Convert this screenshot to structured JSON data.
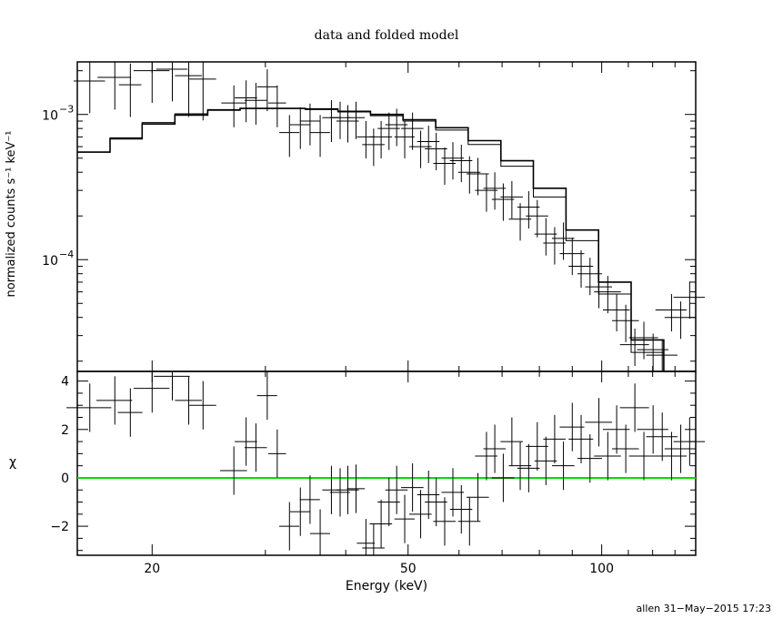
{
  "chart_data": [
    {
      "type": "step-line-errorbars",
      "title": "data and folded model",
      "ylabel": "normalized counts s⁻¹ keV⁻¹",
      "xscale": "log",
      "yscale": "log",
      "xlim": [
        15.3,
        140
      ],
      "ylim": [
        1.7e-05,
        0.0023
      ],
      "y_ticks": [
        {
          "value": 0.001,
          "mantissa": "10",
          "exponent": "−3"
        },
        {
          "value": 0.0001,
          "mantissa": "10",
          "exponent": "−4"
        }
      ],
      "series": [
        {
          "role": "data",
          "points": [
            [
              16.0,
              0.0017,
              0.7,
              0.25
            ],
            [
              17.5,
              0.0018,
              0.75,
              0.25
            ],
            [
              18.5,
              0.0016,
              0.5,
              0.25
            ],
            [
              20.0,
              0.002,
              0.8,
              0.25
            ],
            [
              21.5,
              0.00205,
              0.7,
              0.25
            ],
            [
              22.8,
              0.00185,
              0.6,
              0.3
            ],
            [
              24.0,
              0.00175,
              0.6,
              0.3
            ],
            [
              26.8,
              0.0012,
              0.55,
              0.2
            ],
            [
              28.0,
              0.0013,
              0.5,
              0.2
            ],
            [
              29.0,
              0.00125,
              0.5,
              0.2
            ],
            [
              30.2,
              0.00155,
              0.45,
              0.2
            ],
            [
              31.3,
              0.0012,
              0.4,
              0.2
            ],
            [
              32.7,
              0.00075,
              0.45,
              0.2
            ],
            [
              34.0,
              0.00085,
              0.45,
              0.2
            ],
            [
              35.2,
              0.0009,
              0.45,
              0.2
            ],
            [
              36.5,
              0.00075,
              0.45,
              0.2
            ],
            [
              38.0,
              0.00095,
              0.4,
              0.2
            ],
            [
              39.2,
              0.00095,
              0.45,
              0.18
            ],
            [
              40.3,
              0.0009,
              0.5,
              0.18
            ],
            [
              41.5,
              0.00095,
              0.4,
              0.18
            ],
            [
              43.0,
              0.0007,
              0.4,
              0.18
            ],
            [
              44.2,
              0.00062,
              0.5,
              0.18
            ],
            [
              45.4,
              0.0007,
              0.5,
              0.18
            ],
            [
              46.7,
              0.0008,
              0.5,
              0.18
            ],
            [
              48.0,
              0.00085,
              0.5,
              0.18
            ],
            [
              49.4,
              0.0007,
              0.45,
              0.18
            ],
            [
              50.8,
              0.0008,
              0.5,
              0.18
            ],
            [
              52.3,
              0.0006,
              0.5,
              0.18
            ],
            [
              53.8,
              0.00065,
              0.5,
              0.18
            ],
            [
              55.3,
              0.00058,
              0.5,
              0.18
            ],
            [
              57.0,
              0.00046,
              0.5,
              0.18
            ],
            [
              58.7,
              0.0005,
              0.5,
              0.18
            ],
            [
              60.5,
              0.00048,
              0.5,
              0.18
            ],
            [
              62.3,
              0.0004,
              0.5,
              0.18
            ],
            [
              64.2,
              0.00039,
              0.5,
              0.18
            ],
            [
              66.2,
              0.0003,
              0.5,
              0.18
            ],
            [
              68.2,
              0.00031,
              0.5,
              0.18
            ],
            [
              70.3,
              0.00026,
              0.5,
              0.18
            ],
            [
              72.5,
              0.00027,
              0.5,
              0.18
            ],
            [
              74.7,
              0.00019,
              0.5,
              0.18
            ],
            [
              77.0,
              0.00023,
              0.5,
              0.18
            ],
            [
              79.4,
              0.0002,
              0.5,
              0.18
            ],
            [
              81.9,
              0.00015,
              0.5,
              0.18
            ],
            [
              84.5,
              0.00013,
              0.5,
              0.18
            ],
            [
              87.2,
              0.00014,
              0.5,
              0.18
            ],
            [
              90.0,
              0.00011,
              0.55,
              0.18
            ],
            [
              92.9,
              9e-05,
              0.55,
              0.18
            ],
            [
              95.9,
              8e-05,
              0.55,
              0.18
            ],
            [
              99.0,
              6.5e-05,
              0.6,
              0.18
            ],
            [
              102.2,
              6e-05,
              0.6,
              0.18
            ],
            [
              105.5,
              4.5e-05,
              0.6,
              0.18
            ],
            [
              109.0,
              3.8e-05,
              0.6,
              0.18
            ],
            [
              112.6,
              2.6e-05,
              0.65,
              0.18
            ],
            [
              116.3,
              2.9e-05,
              0.65,
              0.18
            ],
            [
              120.2,
              2.4e-05,
              0.7,
              0.18
            ],
            [
              124.2,
              2.2e-05,
              0.7,
              0.18
            ],
            [
              128.4,
              4.5e-05,
              0.7,
              0.18
            ],
            [
              132.7,
              4e-05,
              0.7,
              0.18
            ],
            [
              137.0,
              5.5e-05,
              0.7,
              0.18
            ]
          ]
        },
        {
          "role": "model-1",
          "color": "#000000",
          "x_edges": [
            15.3,
            17.2,
            19.3,
            21.7,
            24.4,
            27.4,
            30.8,
            34.6,
            38.9,
            43.7,
            49.1,
            55.2,
            62.0,
            69.7,
            78.3,
            88.0,
            98.9,
            111.1,
            124.9,
            140.0
          ],
          "values": [
            0.00055,
            0.00068,
            0.00086,
            0.00099,
            0.00107,
            0.0011,
            0.0011,
            0.00109,
            0.00105,
            0.001,
            0.00092,
            0.00081,
            0.00066,
            0.00048,
            0.00031,
            0.00016,
            7e-05,
            2.8e-05,
            1e-05
          ]
        },
        {
          "role": "model-2",
          "color": "#000000",
          "x_edges": [
            15.3,
            17.2,
            19.3,
            21.7,
            24.4,
            27.4,
            30.8,
            34.6,
            38.9,
            43.7,
            49.1,
            55.2,
            62.0,
            69.7,
            78.3,
            88.0,
            98.9,
            111.1,
            124.9,
            140.0
          ],
          "values": [
            0.00055,
            0.00069,
            0.00088,
            0.00101,
            0.00108,
            0.0011,
            0.0011,
            0.00108,
            0.00104,
            0.00098,
            0.0009,
            0.00078,
            0.00062,
            0.00044,
            0.00027,
            0.000135,
            5.8e-05,
            2.3e-05,
            8e-06
          ]
        }
      ]
    },
    {
      "type": "errorbars-with-reference-line",
      "xlabel": "Energy (keV)",
      "ylabel": "χ",
      "xscale": "log",
      "yscale": "linear",
      "xlim": [
        15.3,
        140
      ],
      "ylim": [
        -3.2,
        4.4
      ],
      "x_ticks": [
        {
          "value": 20,
          "label": "20"
        },
        {
          "value": 50,
          "label": "50"
        },
        {
          "value": 100,
          "label": "100"
        }
      ],
      "y_ticks": [
        {
          "value": 4,
          "label": "4"
        },
        {
          "value": 2,
          "label": "2"
        },
        {
          "value": 0,
          "label": "0"
        },
        {
          "value": -2,
          "label": "−2"
        }
      ],
      "reference_line": {
        "y": 0,
        "color": "#00dd00"
      },
      "series": [
        {
          "role": "residuals",
          "points": [
            [
              16.0,
              2.9,
              1.0,
              1.0
            ],
            [
              17.5,
              3.2,
              0.8,
              1.0
            ],
            [
              18.5,
              2.7,
              0.55,
              1.0
            ],
            [
              20.0,
              3.7,
              0.8,
              1.0
            ],
            [
              21.5,
              4.2,
              0.8,
              1.0
            ],
            [
              22.8,
              3.2,
              0.6,
              1.0
            ],
            [
              24.0,
              3.0,
              0.6,
              1.0
            ],
            [
              26.8,
              0.3,
              0.6,
              1.0
            ],
            [
              28.0,
              1.5,
              0.5,
              1.0
            ],
            [
              29.0,
              1.25,
              0.5,
              1.0
            ],
            [
              30.2,
              3.4,
              0.45,
              1.0
            ],
            [
              31.3,
              1.0,
              0.4,
              1.0
            ],
            [
              32.7,
              -2.0,
              0.45,
              1.0
            ],
            [
              34.0,
              -1.4,
              0.45,
              1.0
            ],
            [
              35.2,
              -0.9,
              0.45,
              1.0
            ],
            [
              36.5,
              -2.3,
              0.45,
              1.0
            ],
            [
              38.0,
              -0.5,
              0.4,
              1.0
            ],
            [
              39.2,
              -0.6,
              0.45,
              1.0
            ],
            [
              40.3,
              -0.5,
              0.5,
              1.0
            ],
            [
              41.5,
              -0.45,
              0.4,
              1.0
            ],
            [
              43.0,
              -2.7,
              0.4,
              1.0
            ],
            [
              44.2,
              -2.9,
              0.5,
              1.0
            ],
            [
              45.4,
              -1.9,
              0.5,
              1.0
            ],
            [
              46.7,
              -1.0,
              0.5,
              1.0
            ],
            [
              48.0,
              -0.5,
              0.5,
              1.0
            ],
            [
              49.4,
              -1.7,
              0.45,
              1.0
            ],
            [
              50.8,
              -0.4,
              0.5,
              1.0
            ],
            [
              52.3,
              -1.5,
              0.5,
              1.0
            ],
            [
              53.8,
              -0.7,
              0.5,
              1.0
            ],
            [
              55.3,
              -1.0,
              0.5,
              1.0
            ],
            [
              57.0,
              -1.8,
              0.5,
              1.0
            ],
            [
              58.7,
              -0.6,
              0.5,
              1.0
            ],
            [
              60.5,
              -1.3,
              0.5,
              1.0
            ],
            [
              62.3,
              -1.8,
              0.5,
              1.0
            ],
            [
              64.2,
              -0.8,
              0.5,
              1.0
            ],
            [
              66.2,
              0.9,
              0.5,
              1.0
            ],
            [
              68.2,
              1.2,
              0.5,
              1.0
            ],
            [
              70.3,
              0.0,
              0.5,
              1.0
            ],
            [
              72.5,
              1.5,
              0.5,
              1.0
            ],
            [
              74.7,
              0.5,
              0.5,
              1.0
            ],
            [
              77.0,
              0.4,
              0.5,
              1.0
            ],
            [
              79.4,
              1.3,
              0.5,
              1.0
            ],
            [
              81.9,
              0.7,
              0.5,
              1.0
            ],
            [
              84.5,
              1.6,
              0.5,
              1.0
            ],
            [
              87.2,
              0.5,
              0.5,
              1.0
            ],
            [
              90.0,
              2.1,
              0.55,
              1.0
            ],
            [
              92.9,
              1.6,
              0.55,
              1.0
            ],
            [
              95.9,
              0.8,
              0.55,
              1.0
            ],
            [
              99.0,
              2.3,
              0.6,
              1.0
            ],
            [
              102.2,
              0.9,
              0.6,
              1.0
            ],
            [
              105.5,
              2.0,
              0.6,
              1.0
            ],
            [
              109.0,
              1.2,
              0.6,
              1.0
            ],
            [
              112.6,
              2.9,
              0.65,
              1.0
            ],
            [
              116.3,
              0.9,
              0.65,
              1.0
            ],
            [
              120.2,
              2.0,
              0.7,
              1.0
            ],
            [
              124.2,
              1.7,
              0.7,
              1.0
            ],
            [
              128.4,
              0.9,
              0.7,
              1.0
            ],
            [
              132.7,
              1.2,
              0.7,
              1.0
            ],
            [
              137.0,
              1.5,
              0.7,
              1.0
            ]
          ]
        }
      ]
    }
  ],
  "footer": {
    "stamp": "allen 31−May−2015 17:23"
  }
}
